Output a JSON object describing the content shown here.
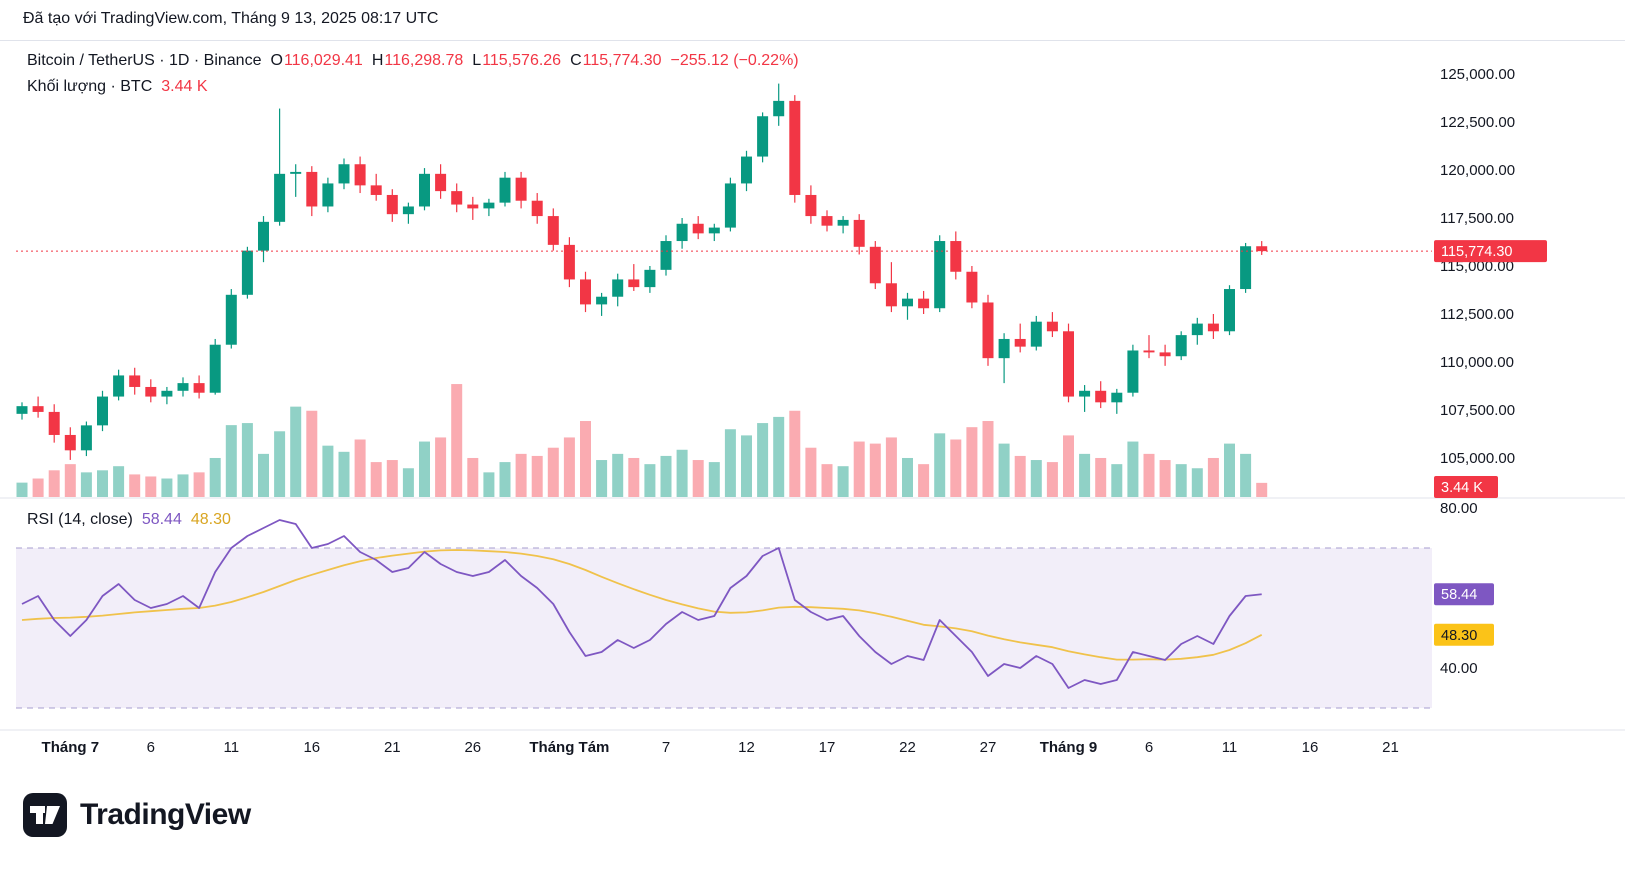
{
  "attribution": "Đã tạo với TradingView.com, Tháng 9 13, 2025 08:17 UTC",
  "legend": {
    "symbol": "Bitcoin / TetherUS · 1D · Binance",
    "o_label": "O",
    "o": "116,029.41",
    "h_label": "H",
    "h": "116,298.78",
    "l_label": "L",
    "l": "115,576.26",
    "c_label": "C",
    "c": "115,774.30",
    "change": "−255.12 (−0.22%)",
    "volume_label": "Khối lượng · BTC",
    "volume_value": "3.44 K"
  },
  "rsi_legend": {
    "label": "RSI (14, close)",
    "value": "58.44",
    "ma_value": "48.30"
  },
  "badges": {
    "price": "115,774.30",
    "volume": "3.44 K",
    "rsi": "58.44",
    "rsi_ma": "48.30"
  },
  "price_axis": [
    {
      "label": "125,000.00",
      "value": 125000
    },
    {
      "label": "122,500.00",
      "value": 122500
    },
    {
      "label": "120,000.00",
      "value": 120000
    },
    {
      "label": "117,500.00",
      "value": 117500
    },
    {
      "label": "115,000.00",
      "value": 115000
    },
    {
      "label": "112,500.00",
      "value": 112500
    },
    {
      "label": "110,000.00",
      "value": 110000
    },
    {
      "label": "107,500.00",
      "value": 107500
    },
    {
      "label": "105,000.00",
      "value": 105000
    }
  ],
  "rsi_axis": [
    {
      "label": "80.00",
      "value": 80
    },
    {
      "label": "40.00",
      "value": 40
    }
  ],
  "time_axis": [
    {
      "index": 3,
      "label": "Tháng 7",
      "bold": true
    },
    {
      "index": 8,
      "label": "6"
    },
    {
      "index": 13,
      "label": "11"
    },
    {
      "index": 18,
      "label": "16"
    },
    {
      "index": 23,
      "label": "21"
    },
    {
      "index": 28,
      "label": "26"
    },
    {
      "index": 34,
      "label": "Tháng Tám",
      "bold": true
    },
    {
      "index": 40,
      "label": "7"
    },
    {
      "index": 45,
      "label": "12"
    },
    {
      "index": 50,
      "label": "17"
    },
    {
      "index": 55,
      "label": "22"
    },
    {
      "index": 60,
      "label": "27"
    },
    {
      "index": 65,
      "label": "Tháng 9",
      "bold": true
    },
    {
      "index": 70,
      "label": "6"
    },
    {
      "index": 75,
      "label": "11"
    },
    {
      "index": 80,
      "label": "16"
    },
    {
      "index": 85,
      "label": "21"
    }
  ],
  "colors": {
    "up": "#089981",
    "down": "#F23645",
    "volume_up": "rgba(8,153,129,0.45)",
    "volume_down": "rgba(242,54,69,0.42)",
    "rsi": "#7E57C2",
    "rsi_ma": "#F0C24B",
    "rsi_ma_text": "#D9A521",
    "rsi_band_fill": "rgba(126,87,194,0.10)",
    "rsi_band_line": "#A79ECF",
    "divider": "#E0E3EB",
    "axis_text": "#131722",
    "badge_rsi_ma_bg": "#FBC318"
  },
  "logo": {
    "text": "TradingView"
  },
  "chart_data": {
    "type": "candlestick+volume+rsi",
    "title": "Bitcoin / TetherUS",
    "interval": "1D",
    "exchange": "Binance",
    "start_date": "2025-06-28",
    "end_date": "2025-09-13",
    "current_price": 115774.3,
    "price_range_shown": [
      105000,
      125000
    ],
    "volume_unit": "K BTC",
    "rsi_settings": "RSI (14, close)",
    "rsi_levels": [
      30,
      70
    ],
    "candles": [
      [
        107300,
        107900,
        107000,
        107700
      ],
      [
        107700,
        108200,
        107100,
        107400
      ],
      [
        107400,
        107800,
        105800,
        106200
      ],
      [
        106200,
        106600,
        104900,
        105400
      ],
      [
        105400,
        106900,
        105100,
        106700
      ],
      [
        106700,
        108500,
        106400,
        108200
      ],
      [
        108200,
        109600,
        108000,
        109300
      ],
      [
        109300,
        109700,
        108300,
        108700
      ],
      [
        108700,
        109100,
        107900,
        108200
      ],
      [
        108200,
        108700,
        107800,
        108500
      ],
      [
        108500,
        109200,
        108200,
        108900
      ],
      [
        108900,
        109300,
        108100,
        108400
      ],
      [
        108400,
        111200,
        108300,
        110900
      ],
      [
        110900,
        113800,
        110700,
        113500
      ],
      [
        113500,
        116000,
        113300,
        115800
      ],
      [
        115800,
        117600,
        115200,
        117300
      ],
      [
        117300,
        123200,
        117100,
        119800
      ],
      [
        119800,
        120300,
        118600,
        119900
      ],
      [
        119900,
        120200,
        117600,
        118100
      ],
      [
        118100,
        119600,
        117800,
        119300
      ],
      [
        119300,
        120600,
        119000,
        120300
      ],
      [
        120300,
        120700,
        118800,
        119200
      ],
      [
        119200,
        119800,
        118400,
        118700
      ],
      [
        118700,
        119000,
        117300,
        117700
      ],
      [
        117700,
        118300,
        117200,
        118100
      ],
      [
        118100,
        120100,
        117900,
        119800
      ],
      [
        119800,
        120300,
        118500,
        118900
      ],
      [
        118900,
        119300,
        117800,
        118200
      ],
      [
        118200,
        118600,
        117400,
        118000
      ],
      [
        118000,
        118500,
        117600,
        118300
      ],
      [
        118300,
        119900,
        118100,
        119600
      ],
      [
        119600,
        119900,
        118000,
        118400
      ],
      [
        118400,
        118800,
        117200,
        117600
      ],
      [
        117600,
        118000,
        115800,
        116100
      ],
      [
        116100,
        116500,
        113900,
        114300
      ],
      [
        114300,
        114700,
        112600,
        113000
      ],
      [
        113000,
        113600,
        112400,
        113400
      ],
      [
        113400,
        114600,
        112900,
        114300
      ],
      [
        114300,
        115100,
        113700,
        113900
      ],
      [
        113900,
        115000,
        113600,
        114800
      ],
      [
        114800,
        116600,
        114500,
        116300
      ],
      [
        116300,
        117500,
        115900,
        117200
      ],
      [
        117200,
        117600,
        116400,
        116700
      ],
      [
        116700,
        117200,
        116300,
        117000
      ],
      [
        117000,
        119600,
        116800,
        119300
      ],
      [
        119300,
        121000,
        118900,
        120700
      ],
      [
        120700,
        123000,
        120400,
        122800
      ],
      [
        122800,
        124500,
        122300,
        123600
      ],
      [
        123600,
        123900,
        118300,
        118700
      ],
      [
        118700,
        119200,
        117200,
        117600
      ],
      [
        117600,
        117900,
        116800,
        117100
      ],
      [
        117100,
        117600,
        116700,
        117400
      ],
      [
        117400,
        117700,
        115600,
        116000
      ],
      [
        116000,
        116300,
        113800,
        114100
      ],
      [
        114100,
        115200,
        112600,
        112900
      ],
      [
        112900,
        113600,
        112200,
        113300
      ],
      [
        113300,
        113700,
        112500,
        112800
      ],
      [
        112800,
        116600,
        112600,
        116300
      ],
      [
        116300,
        116800,
        114300,
        114700
      ],
      [
        114700,
        115000,
        112800,
        113100
      ],
      [
        113100,
        113500,
        109800,
        110200
      ],
      [
        110200,
        111500,
        108900,
        111200
      ],
      [
        111200,
        112000,
        110500,
        110800
      ],
      [
        110800,
        112400,
        110600,
        112100
      ],
      [
        112100,
        112600,
        111300,
        111600
      ],
      [
        111600,
        112000,
        107900,
        108200
      ],
      [
        108200,
        108800,
        107400,
        108500
      ],
      [
        108500,
        109000,
        107600,
        107900
      ],
      [
        107900,
        108600,
        107300,
        108400
      ],
      [
        108400,
        110900,
        108200,
        110600
      ],
      [
        110600,
        111400,
        110200,
        110500
      ],
      [
        110500,
        110900,
        109800,
        110300
      ],
      [
        110300,
        111600,
        110100,
        111400
      ],
      [
        111400,
        112300,
        110900,
        112000
      ],
      [
        112000,
        112500,
        111200,
        111600
      ],
      [
        111600,
        114000,
        111400,
        113800
      ],
      [
        113800,
        116200,
        113600,
        116029.41
      ],
      [
        116029.41,
        116298.78,
        115576.26,
        115774.3
      ]
    ],
    "volumes": [
      3.5,
      4.5,
      6.5,
      8,
      6,
      6.5,
      7.5,
      5.5,
      5,
      4.5,
      5.5,
      6,
      9.5,
      17.5,
      18,
      10.5,
      16,
      22,
      21,
      12.5,
      11,
      14,
      8.5,
      9,
      7,
      13.5,
      14.5,
      27.5,
      9.5,
      6,
      8.5,
      10.5,
      10,
      12,
      14.5,
      18.5,
      9,
      10.5,
      9.5,
      8,
      10,
      11.5,
      9,
      8.5,
      16.5,
      15,
      18,
      19.5,
      21,
      12,
      8,
      7.5,
      13.5,
      13,
      14.5,
      9.5,
      8,
      15.5,
      14,
      17,
      18.5,
      13,
      10,
      9,
      8.5,
      15,
      10.5,
      9.5,
      8,
      13.5,
      10.5,
      9,
      8,
      7,
      9.5,
      13,
      10.5,
      3.44
    ],
    "rsi": [
      56,
      58,
      52,
      48,
      52,
      58,
      61,
      57,
      55,
      56,
      58,
      55,
      64,
      70,
      73,
      75,
      77,
      76,
      70,
      71,
      73,
      69,
      67,
      64,
      65,
      69,
      66,
      64,
      63,
      64,
      67,
      63,
      60,
      56,
      49,
      43,
      44,
      47,
      45,
      47,
      51,
      54,
      52,
      53,
      60,
      63,
      68,
      70,
      57,
      54,
      52,
      53,
      48,
      44,
      41,
      43,
      42,
      52,
      48,
      44,
      38,
      41,
      40,
      43,
      41,
      35,
      37,
      36,
      37,
      44,
      43,
      42,
      46,
      48,
      46,
      53,
      58,
      58.44
    ],
    "rsi_ma": [
      52,
      52.3,
      52.5,
      52.6,
      52.8,
      53.1,
      53.5,
      53.9,
      54.2,
      54.5,
      54.8,
      55,
      55.6,
      56.5,
      57.7,
      59,
      60.5,
      62,
      63.3,
      64.5,
      65.7,
      66.7,
      67.5,
      68.1,
      68.6,
      69.1,
      69.4,
      69.5,
      69.4,
      69.2,
      69,
      68.6,
      68,
      67.2,
      66,
      64.5,
      62.8,
      61.2,
      59.7,
      58.3,
      57,
      55.9,
      54.9,
      54.1,
      53.8,
      53.9,
      54.4,
      55.1,
      55.3,
      55.2,
      55,
      54.8,
      54.4,
      53.7,
      52.8,
      51.8,
      50.8,
      50.4,
      49.9,
      49.2,
      48.1,
      47.2,
      46.4,
      45.8,
      45.2,
      44.2,
      43.4,
      42.7,
      42.1,
      42.1,
      42.2,
      42.1,
      42.3,
      42.7,
      43.3,
      44.5,
      46.2,
      48.3
    ]
  }
}
